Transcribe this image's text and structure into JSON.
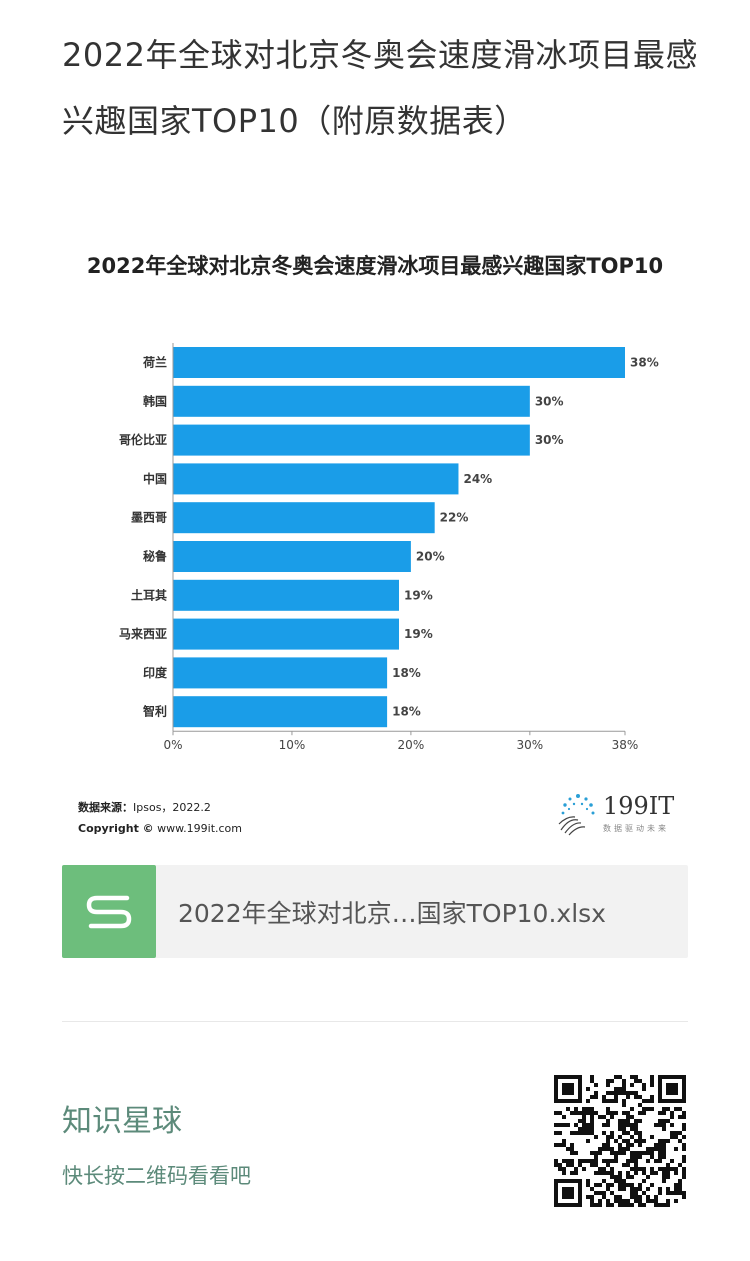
{
  "article": {
    "title": "2022年全球对北京冬奥会速度滑冰项目最感兴趣国家TOP10（附原数据表）"
  },
  "chart_data": {
    "type": "bar",
    "orientation": "horizontal",
    "title": "2022年全球对北京冬奥会速度滑冰项目最感兴趣国家TOP10",
    "categories": [
      "荷兰",
      "韩国",
      "哥伦比亚",
      "中国",
      "墨西哥",
      "秘鲁",
      "土耳其",
      "马来西亚",
      "印度",
      "智利"
    ],
    "values": [
      38,
      30,
      30,
      24,
      22,
      20,
      19,
      19,
      18,
      18
    ],
    "value_labels": [
      "38%",
      "30%",
      "30%",
      "24%",
      "22%",
      "20%",
      "19%",
      "19%",
      "18%",
      "18%"
    ],
    "x_ticks": [
      0,
      10,
      20,
      30,
      38
    ],
    "x_tick_labels": [
      "0%",
      "10%",
      "20%",
      "30%",
      "38%"
    ],
    "xlim": [
      0,
      38
    ],
    "grid": false,
    "bar_color": "#1a9de8"
  },
  "source": {
    "label": "数据来源：",
    "text": "Ipsos，2022.2",
    "copyright_label": "Copyright ©",
    "copyright_site": "www.199it.com"
  },
  "logo": {
    "name": "199IT",
    "tagline": "数据驱动未来"
  },
  "file": {
    "icon": "spreadsheet-s-icon",
    "name": "2022年全球对北京…国家TOP10.xlsx",
    "icon_color": "#6dbe7c"
  },
  "planet": {
    "title": "知识星球",
    "subtitle": "快长按二维码看看吧"
  }
}
